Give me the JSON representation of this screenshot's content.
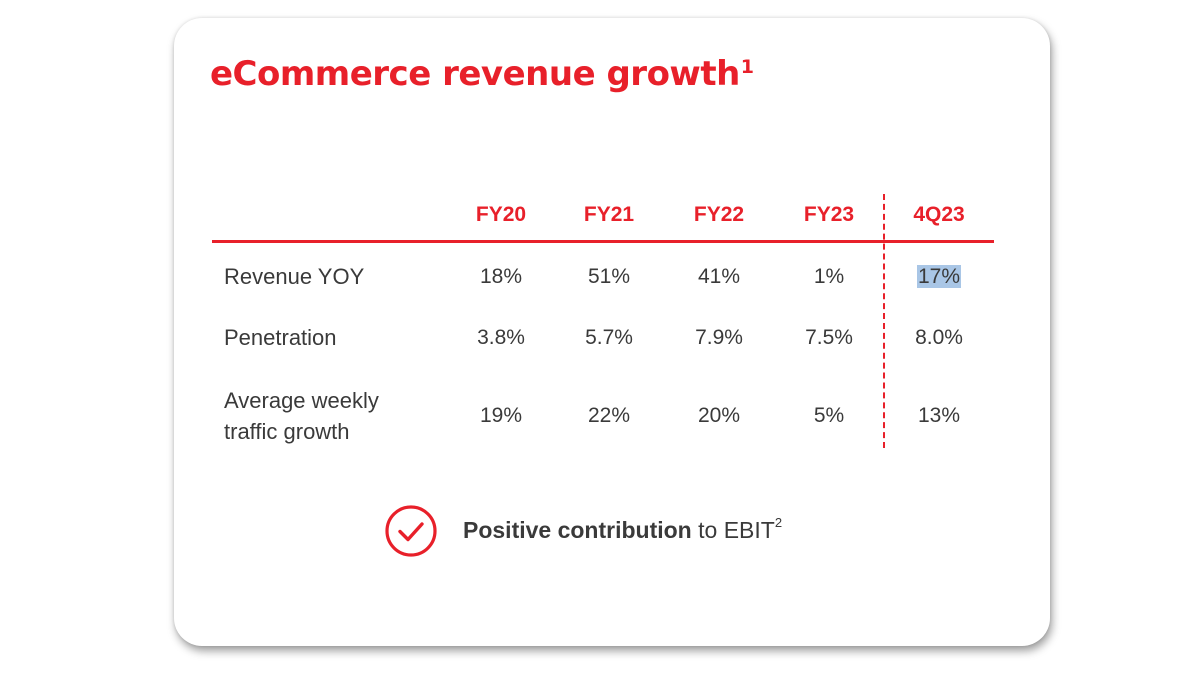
{
  "title": {
    "text": "eCommerce revenue growth",
    "footnote": "1"
  },
  "table": {
    "columns": [
      "FY20",
      "FY21",
      "FY22",
      "FY23",
      "4Q23"
    ],
    "rows": [
      {
        "label": "Revenue YOY",
        "values": [
          "18%",
          "51%",
          "41%",
          "1%",
          "17%"
        ]
      },
      {
        "label": "Penetration",
        "values": [
          "3.8%",
          "5.7%",
          "7.9%",
          "7.5%",
          "8.0%"
        ]
      },
      {
        "label_line1": "Average weekly",
        "label_line2": "traffic growth",
        "values": [
          "19%",
          "22%",
          "20%",
          "5%",
          "13%"
        ]
      }
    ]
  },
  "footer": {
    "icon": "check-circle-icon",
    "bold": "Positive contribution",
    "rest": " to EBIT",
    "footnote": "2"
  },
  "colors": {
    "accent": "#e8202a",
    "text": "#3a3a3a",
    "selection": "#a9c6e6"
  }
}
